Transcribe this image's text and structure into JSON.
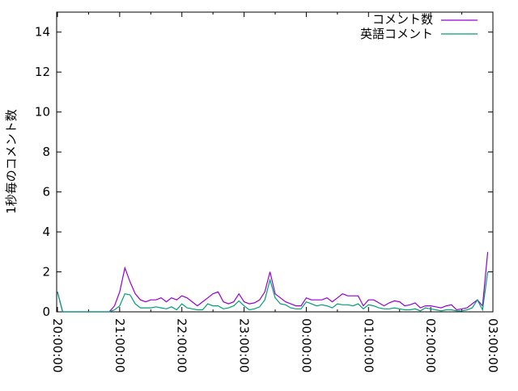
{
  "chart_data": {
    "type": "line",
    "title": "",
    "xlabel": "",
    "ylabel": "1秒毎のコメント数",
    "ylim": [
      0,
      15
    ],
    "xlim": [
      "20:00:00",
      "03:00:00"
    ],
    "yticks": [
      "0",
      "2",
      "4",
      "6",
      "8",
      "10",
      "12",
      "14"
    ],
    "xticks": [
      "20:00:00",
      "21:00:00",
      "22:00:00",
      "23:00:00",
      "00:00:00",
      "01:00:00",
      "02:00:00",
      "03:00:00"
    ],
    "grid": false,
    "legend_position": "top-right",
    "x_start": "20:00",
    "x_step_minutes": 5,
    "series": [
      {
        "name": "コメント数",
        "color": "#9400d3",
        "values": [
          1.0,
          0,
          0,
          0,
          0,
          0,
          0,
          0,
          0,
          0,
          0,
          0.3,
          1.0,
          2.2,
          1.5,
          0.9,
          0.6,
          0.5,
          0.6,
          0.6,
          0.7,
          0.5,
          0.7,
          0.6,
          0.8,
          0.7,
          0.5,
          0.3,
          0.5,
          0.7,
          0.9,
          1.0,
          0.5,
          0.4,
          0.5,
          0.9,
          0.5,
          0.4,
          0.45,
          0.6,
          1.0,
          2.0,
          0.9,
          0.7,
          0.5,
          0.4,
          0.3,
          0.3,
          0.7,
          0.6,
          0.6,
          0.6,
          0.7,
          0.5,
          0.7,
          0.9,
          0.8,
          0.8,
          0.8,
          0.3,
          0.6,
          0.6,
          0.45,
          0.3,
          0.45,
          0.55,
          0.5,
          0.3,
          0.35,
          0.45,
          0.2,
          0.3,
          0.3,
          0.25,
          0.2,
          0.3,
          0.35,
          0.1,
          0.15,
          0.2,
          0.4,
          0.6,
          0.3,
          3.0
        ]
      },
      {
        "name": "英語コメント",
        "color": "#009e73",
        "values": [
          1.0,
          0,
          0,
          0,
          0,
          0,
          0,
          0,
          0,
          0,
          0,
          0.1,
          0.3,
          0.9,
          0.85,
          0.4,
          0.2,
          0.2,
          0.2,
          0.25,
          0.2,
          0.15,
          0.25,
          0.1,
          0.4,
          0.2,
          0.15,
          0.1,
          0.1,
          0.4,
          0.3,
          0.3,
          0.15,
          0.2,
          0.3,
          0.55,
          0.3,
          0.1,
          0.15,
          0.25,
          0.6,
          1.6,
          0.7,
          0.4,
          0.35,
          0.2,
          0.15,
          0.15,
          0.5,
          0.4,
          0.3,
          0.35,
          0.3,
          0.2,
          0.4,
          0.35,
          0.35,
          0.3,
          0.4,
          0.15,
          0.35,
          0.3,
          0.2,
          0.15,
          0.15,
          0.2,
          0.15,
          0.1,
          0.1,
          0.15,
          0.05,
          0.2,
          0.15,
          0.1,
          0.05,
          0.1,
          0.1,
          0.05,
          0.05,
          0.1,
          0.2,
          0.6,
          0.1,
          2.0
        ]
      }
    ]
  }
}
